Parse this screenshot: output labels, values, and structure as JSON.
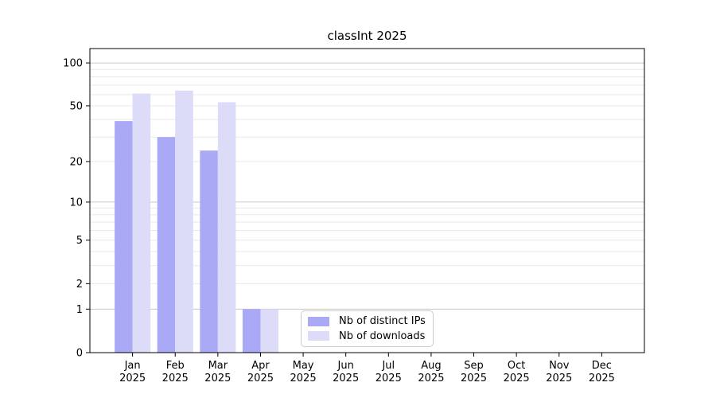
{
  "figure": {
    "background": "#ffffff"
  },
  "chart_data": {
    "type": "bar",
    "title": "classInt 2025",
    "categories": [
      "Jan",
      "Feb",
      "Mar",
      "Apr",
      "May",
      "Jun",
      "Jul",
      "Aug",
      "Sep",
      "Oct",
      "Nov",
      "Dec"
    ],
    "year_label": "2025",
    "series": [
      {
        "name": "Nb of distinct IPs",
        "color": "#a9a9f6",
        "values": [
          39,
          30,
          24,
          1,
          0,
          0,
          0,
          0,
          0,
          0,
          0,
          0
        ]
      },
      {
        "name": "Nb of downloads",
        "color": "#dcdcf8",
        "values": [
          61,
          64,
          53,
          1,
          0,
          0,
          0,
          0,
          0,
          0,
          0,
          0
        ]
      }
    ],
    "y_scale": "log1p",
    "ylim": [
      0,
      126
    ],
    "y_ticks": [
      0,
      1,
      2,
      5,
      10,
      20,
      50,
      100
    ],
    "y_tick_labels": [
      "0",
      "1",
      "2",
      "5",
      "10",
      "20",
      "50",
      "100"
    ],
    "gridlines": {
      "major": [
        1,
        10,
        100
      ],
      "minor": [
        2,
        3,
        4,
        5,
        6,
        7,
        8,
        9,
        20,
        30,
        40,
        50,
        60,
        70,
        80,
        90
      ]
    },
    "legend_position": "lower center",
    "grid": true,
    "colors": {
      "axis": "#000000",
      "tick_label": "#000000",
      "grid_major": "#c6c6c6",
      "grid_minor": "#e9e9e9",
      "legend_border": "#cccccc"
    }
  }
}
